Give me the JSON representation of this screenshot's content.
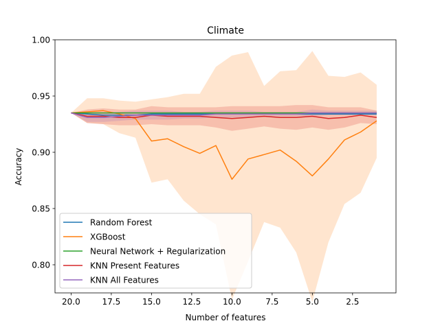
{
  "chart_data": {
    "type": "line",
    "title": "Climate",
    "xlabel": "Number of features",
    "ylabel": "Accuracy",
    "xlim": [
      21.0,
      -0.2
    ],
    "ylim": [
      0.775,
      1.0
    ],
    "x_inverted": true,
    "xticks": [
      20.0,
      17.5,
      15.0,
      12.5,
      10.0,
      7.5,
      5.0,
      2.5
    ],
    "xtick_labels": [
      "20.0",
      "17.5",
      "15.0",
      "12.5",
      "10.0",
      "7.5",
      "5.0",
      "2.5"
    ],
    "yticks": [
      0.8,
      0.85,
      0.9,
      0.95,
      1.0
    ],
    "ytick_labels": [
      "0.80",
      "0.85",
      "0.90",
      "0.95",
      "1.00"
    ],
    "x": [
      20,
      19,
      18,
      17,
      16,
      15,
      14,
      13,
      12,
      11,
      10,
      9,
      8,
      7,
      6,
      5,
      4,
      3,
      2,
      1
    ],
    "legend": {
      "position": "lower left"
    },
    "series": [
      {
        "name": "Random Forest",
        "color": "#1f77b4",
        "values": [
          0.935,
          0.934,
          0.933,
          0.933,
          0.933,
          0.934,
          0.934,
          0.934,
          0.934,
          0.934,
          0.934,
          0.934,
          0.934,
          0.934,
          0.934,
          0.934,
          0.934,
          0.934,
          0.934,
          0.934
        ]
      },
      {
        "name": "XGBoost",
        "color": "#ff7f0e",
        "values": [
          0.935,
          0.936,
          0.937,
          0.934,
          0.93,
          0.91,
          0.912,
          0.905,
          0.899,
          0.906,
          0.876,
          0.894,
          0.898,
          0.902,
          0.892,
          0.879,
          0.894,
          0.911,
          0.918,
          0.928
        ],
        "band_lower": [
          0.935,
          0.926,
          0.925,
          0.917,
          0.913,
          0.873,
          0.876,
          0.857,
          0.845,
          0.836,
          0.769,
          0.803,
          0.838,
          0.833,
          0.811,
          0.767,
          0.82,
          0.854,
          0.864,
          0.895
        ],
        "band_upper": [
          0.935,
          0.948,
          0.948,
          0.946,
          0.945,
          0.947,
          0.949,
          0.952,
          0.952,
          0.976,
          0.986,
          0.989,
          0.959,
          0.972,
          0.973,
          0.99,
          0.968,
          0.967,
          0.971,
          0.96
        ]
      },
      {
        "name": "Neural Network + Regularization",
        "color": "#2ca02c",
        "values": [
          0.935,
          0.935,
          0.935,
          0.935,
          0.935,
          0.935,
          0.935,
          0.935,
          0.935,
          0.935,
          0.935,
          0.935,
          0.935,
          0.935,
          0.935,
          0.935,
          0.935,
          0.935,
          0.935,
          0.935
        ]
      },
      {
        "name": "KNN Present Features",
        "color": "#d62728",
        "values": [
          0.935,
          0.932,
          0.932,
          0.931,
          0.931,
          0.933,
          0.932,
          0.932,
          0.932,
          0.931,
          0.93,
          0.931,
          0.932,
          0.931,
          0.931,
          0.932,
          0.93,
          0.931,
          0.933,
          0.931
        ],
        "band_lower": [
          0.935,
          0.926,
          0.925,
          0.924,
          0.924,
          0.925,
          0.924,
          0.924,
          0.924,
          0.922,
          0.919,
          0.921,
          0.923,
          0.921,
          0.92,
          0.922,
          0.92,
          0.922,
          0.926,
          0.925
        ],
        "band_upper": [
          0.935,
          0.938,
          0.939,
          0.938,
          0.938,
          0.941,
          0.94,
          0.94,
          0.94,
          0.94,
          0.941,
          0.941,
          0.941,
          0.941,
          0.942,
          0.942,
          0.94,
          0.94,
          0.94,
          0.937
        ]
      },
      {
        "name": "KNN All Features",
        "color": "#9467bd",
        "values": [
          0.935,
          0.931,
          0.931,
          0.932,
          0.933,
          0.933,
          0.933,
          0.933,
          0.933,
          0.934,
          0.934,
          0.934,
          0.934,
          0.934,
          0.934,
          0.935,
          0.935,
          0.935,
          0.935,
          0.935
        ],
        "band_lower": [
          0.935,
          0.927,
          0.927,
          0.928,
          0.929,
          0.929,
          0.929,
          0.93,
          0.93,
          0.931,
          0.931,
          0.931,
          0.932,
          0.932,
          0.932,
          0.932,
          0.933,
          0.933,
          0.933,
          0.933
        ],
        "band_upper": [
          0.935,
          0.935,
          0.935,
          0.936,
          0.937,
          0.937,
          0.937,
          0.936,
          0.936,
          0.937,
          0.937,
          0.937,
          0.936,
          0.936,
          0.936,
          0.938,
          0.937,
          0.937,
          0.937,
          0.937
        ]
      }
    ]
  }
}
